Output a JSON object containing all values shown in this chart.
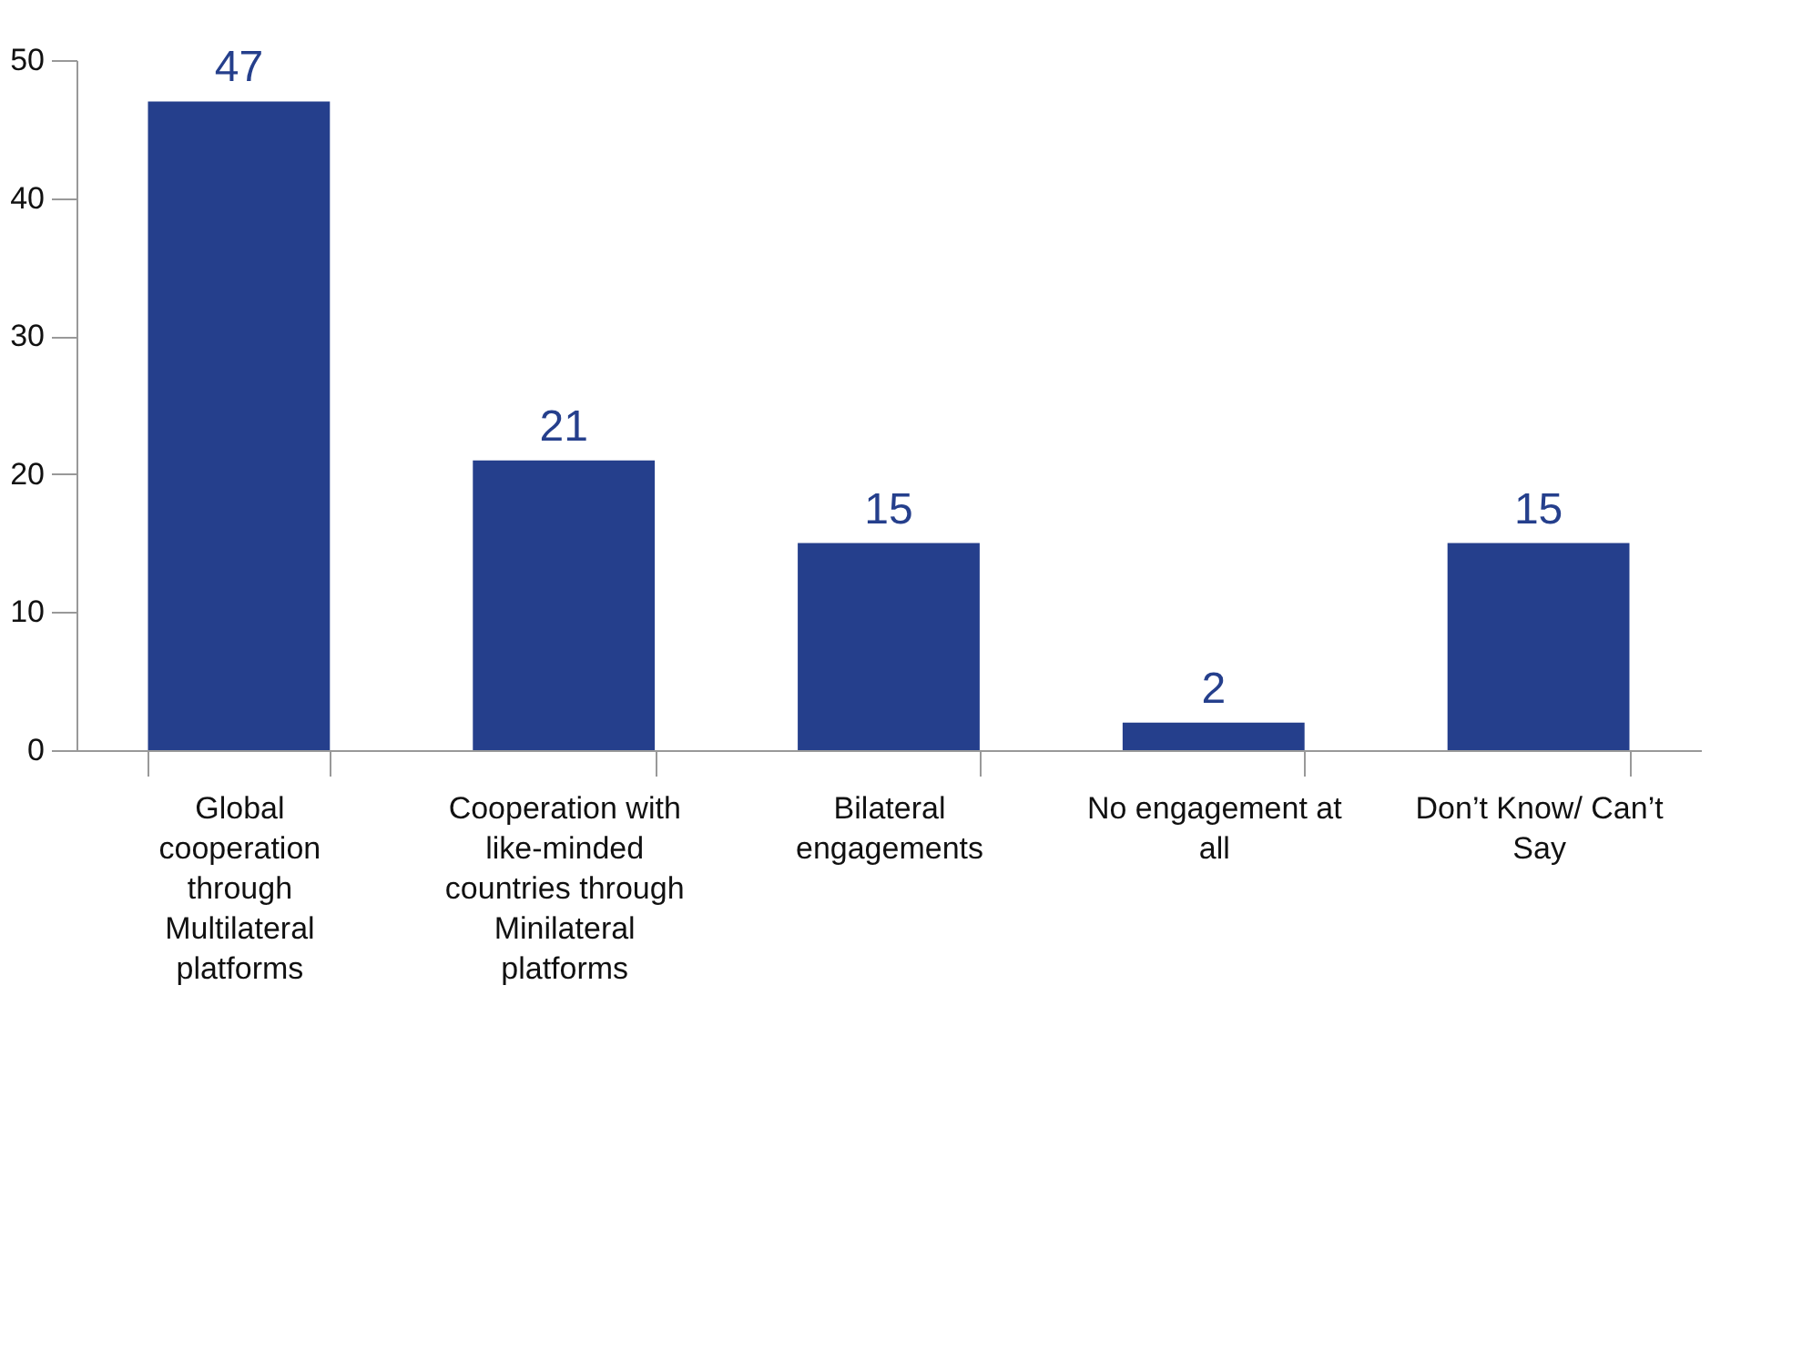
{
  "chart_data": {
    "type": "bar",
    "categories": [
      "Global cooperation through Multilateral platforms",
      "Cooperation with like-minded countries through Minilateral platforms",
      "Bilateral engagements",
      "No engagement at all",
      "Don’t Know/ Can’t Say"
    ],
    "values": [
      47,
      21,
      15,
      2,
      15
    ],
    "color": "#253f8c",
    "ylim": [
      0,
      50
    ],
    "yticks": [
      0,
      10,
      20,
      30,
      40,
      50
    ],
    "grid": false,
    "data_labels": true
  }
}
